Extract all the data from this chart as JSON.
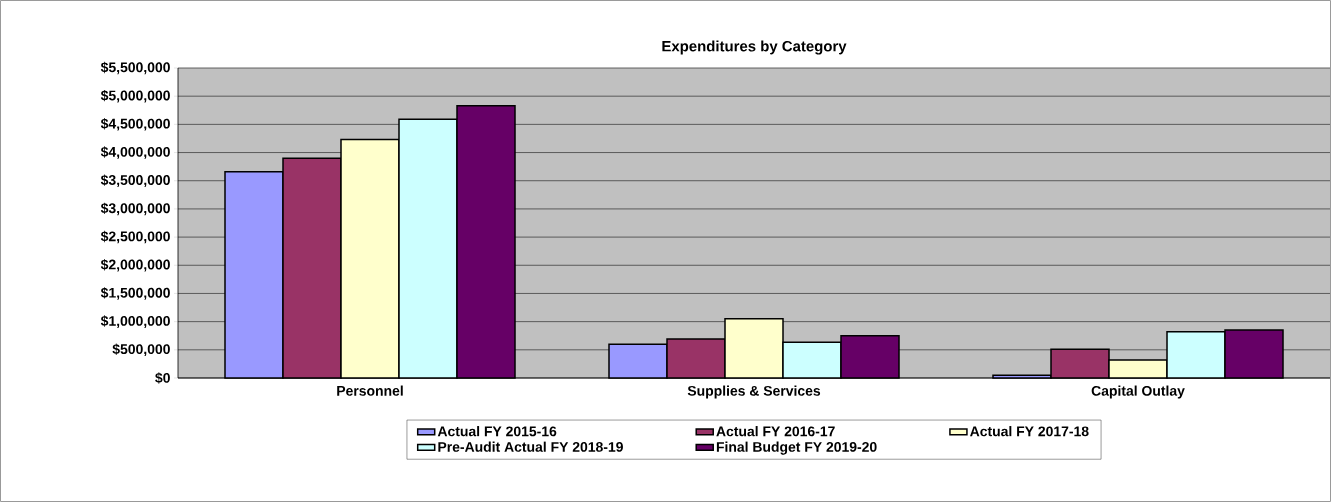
{
  "chart_data": {
    "type": "bar",
    "title": "Expenditures by Category",
    "categories": [
      "Personnel",
      "Supplies & Services",
      "Capital Outlay"
    ],
    "series": [
      {
        "name": "Actual FY 2015-16",
        "color": "#9999ff",
        "values": [
          3660000,
          600000,
          50000
        ]
      },
      {
        "name": "Actual FY 2016-17",
        "color": "#993366",
        "values": [
          3900000,
          690000,
          510000
        ]
      },
      {
        "name": "Actual FY 2017-18",
        "color": "#ffffcc",
        "values": [
          4230000,
          1050000,
          320000
        ]
      },
      {
        "name": "Pre-Audit Actual FY 2018-19",
        "color": "#ccffff",
        "values": [
          4590000,
          635000,
          820000
        ]
      },
      {
        "name": "Final Budget FY 2019-20",
        "color": "#660066",
        "values": [
          4830000,
          750000,
          850000
        ]
      }
    ],
    "ylim": [
      0,
      5500000
    ],
    "yticks": [
      {
        "value": 0,
        "label": "$0"
      },
      {
        "value": 500000,
        "label": "$500,000"
      },
      {
        "value": 1000000,
        "label": "$1,000,000"
      },
      {
        "value": 1500000,
        "label": "$1,500,000"
      },
      {
        "value": 2000000,
        "label": "$2,000,000"
      },
      {
        "value": 2500000,
        "label": "$2,500,000"
      },
      {
        "value": 3000000,
        "label": "$3,000,000"
      },
      {
        "value": 3500000,
        "label": "$3,500,000"
      },
      {
        "value": 4000000,
        "label": "$4,000,000"
      },
      {
        "value": 4500000,
        "label": "$4,500,000"
      },
      {
        "value": 5000000,
        "label": "$5,000,000"
      },
      {
        "value": 5500000,
        "label": "$5,500,000"
      }
    ],
    "grid": "y",
    "legend": "bottom"
  }
}
